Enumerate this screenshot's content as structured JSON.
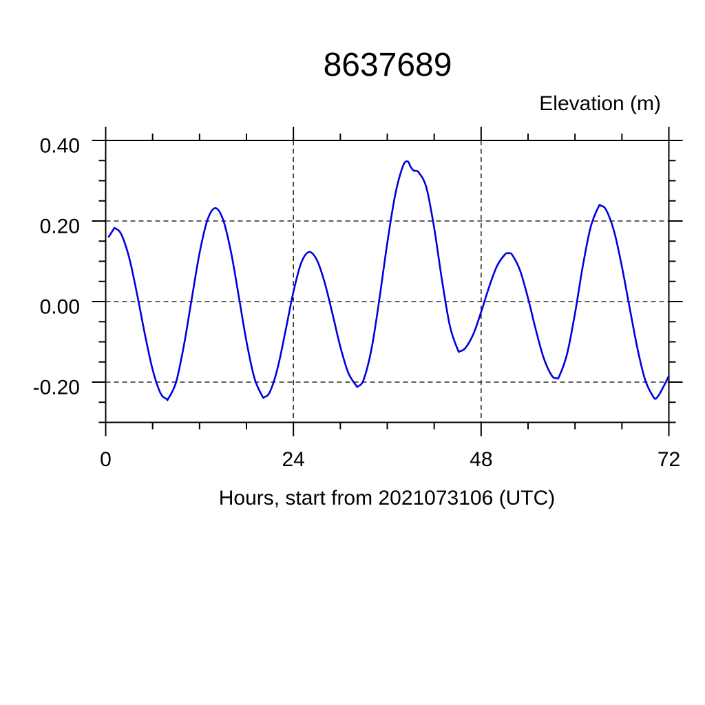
{
  "title": "8637689",
  "y_axis_title": "Elevation (m)",
  "x_axis_label": "Hours, start from 2021073106 (UTC)",
  "colors": {
    "line": "#0000dd",
    "axis": "#000000",
    "grid": "#2a2a2a",
    "background": "#ffffff",
    "text": "#000000"
  },
  "chart_data": {
    "type": "line",
    "title": "8637689",
    "xlabel": "Hours, start from 2021073106 (UTC)",
    "ylabel": "Elevation (m)",
    "xlim": [
      0,
      72
    ],
    "ylim": [
      -0.3,
      0.4
    ],
    "x_major_ticks": [
      0,
      24,
      48,
      72
    ],
    "x_tick_labels": [
      "0",
      "24",
      "48",
      "72"
    ],
    "x_minor_step": 6,
    "y_major_ticks": [
      -0.2,
      0.0,
      0.2,
      0.4
    ],
    "y_tick_labels": [
      "-0.20",
      "0.00",
      "0.20",
      "0.40"
    ],
    "y_minor_step": 0.05,
    "grid": "dashed-at-major-ticks",
    "legend_position": "none",
    "series": [
      {
        "name": "elevation",
        "color": "#0000dd",
        "points": [
          [
            0.4,
            0.161
          ],
          [
            1,
            0.179
          ],
          [
            1.2,
            0.182
          ],
          [
            2,
            0.167
          ],
          [
            3,
            0.109
          ],
          [
            4,
            0.02
          ],
          [
            5,
            -0.08
          ],
          [
            6,
            -0.169
          ],
          [
            7,
            -0.227
          ],
          [
            7.8,
            -0.242
          ],
          [
            8,
            -0.241
          ],
          [
            9,
            -0.2
          ],
          [
            10,
            -0.109
          ],
          [
            11,
            0.007
          ],
          [
            12,
            0.12
          ],
          [
            13,
            0.202
          ],
          [
            14,
            0.232
          ],
          [
            15,
            0.204
          ],
          [
            16,
            0.125
          ],
          [
            17,
            0.015
          ],
          [
            18,
            -0.099
          ],
          [
            19,
            -0.189
          ],
          [
            20,
            -0.234
          ],
          [
            20.3,
            -0.237
          ],
          [
            21,
            -0.224
          ],
          [
            22,
            -0.164
          ],
          [
            23,
            -0.072
          ],
          [
            24,
            0.024
          ],
          [
            25,
            0.096
          ],
          [
            26,
            0.123
          ],
          [
            27,
            0.103
          ],
          [
            28,
            0.047
          ],
          [
            29,
            -0.031
          ],
          [
            30,
            -0.112
          ],
          [
            31,
            -0.176
          ],
          [
            32,
            -0.208
          ],
          [
            32.3,
            -0.21
          ],
          [
            33,
            -0.193
          ],
          [
            34,
            -0.116
          ],
          [
            35,
            0.007
          ],
          [
            36,
            0.145
          ],
          [
            37,
            0.264
          ],
          [
            38,
            0.336
          ],
          [
            38.6,
            0.348
          ],
          [
            39,
            0.334
          ],
          [
            39.4,
            0.325
          ],
          [
            40,
            0.321
          ],
          [
            41,
            0.283
          ],
          [
            42,
            0.182
          ],
          [
            43,
            0.053
          ],
          [
            44,
            -0.06
          ],
          [
            45,
            -0.119
          ],
          [
            45.3,
            -0.123
          ],
          [
            46,
            -0.115
          ],
          [
            47,
            -0.081
          ],
          [
            48,
            -0.026
          ],
          [
            49,
            0.035
          ],
          [
            50,
            0.087
          ],
          [
            51,
            0.116
          ],
          [
            51.5,
            0.12
          ],
          [
            52,
            0.115
          ],
          [
            53,
            0.076
          ],
          [
            54,
            0.008
          ],
          [
            55,
            -0.071
          ],
          [
            56,
            -0.14
          ],
          [
            57,
            -0.183
          ],
          [
            57.6,
            -0.19
          ],
          [
            58,
            -0.185
          ],
          [
            59,
            -0.129
          ],
          [
            60,
            -0.029
          ],
          [
            61,
            0.088
          ],
          [
            62,
            0.185
          ],
          [
            63,
            0.235
          ],
          [
            63.3,
            0.238
          ],
          [
            64,
            0.227
          ],
          [
            65,
            0.174
          ],
          [
            66,
            0.087
          ],
          [
            67,
            -0.017
          ],
          [
            68,
            -0.118
          ],
          [
            69,
            -0.196
          ],
          [
            70,
            -0.236
          ],
          [
            70.4,
            -0.24
          ],
          [
            71,
            -0.223
          ],
          [
            72,
            -0.185
          ]
        ]
      }
    ]
  }
}
